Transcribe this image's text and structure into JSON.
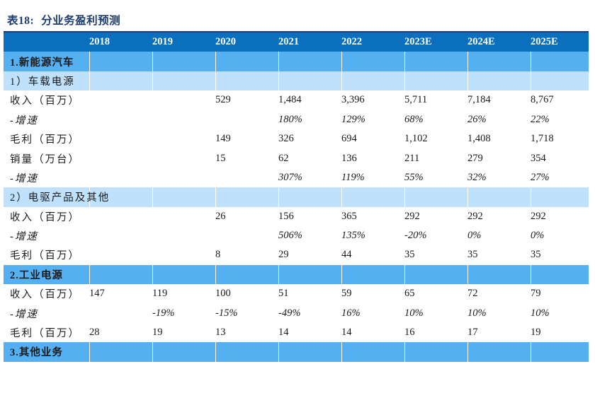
{
  "title": {
    "number": "表18:",
    "text": "分业务盈利预测"
  },
  "columns": [
    "2018",
    "2019",
    "2020",
    "2021",
    "2022",
    "2023E",
    "2024E",
    "2025E"
  ],
  "rows": [
    {
      "type": "section",
      "label": "1.新能源汽车",
      "values": [
        "",
        "",
        "",
        "",
        "",
        "",
        "",
        ""
      ]
    },
    {
      "type": "subsection",
      "label": "1）车载电源",
      "values": [
        "",
        "",
        "",
        "",
        "",
        "",
        "",
        ""
      ]
    },
    {
      "type": "data",
      "label": "收入（百万）",
      "values": [
        "",
        "",
        "529",
        "1,484",
        "3,396",
        "5,711",
        "7,184",
        "8,767"
      ]
    },
    {
      "type": "growth",
      "label": "-增速",
      "values": [
        "",
        "",
        "",
        "180%",
        "129%",
        "68%",
        "26%",
        "22%"
      ]
    },
    {
      "type": "data",
      "label": "毛利（百万）",
      "values": [
        "",
        "",
        "149",
        "326",
        "694",
        "1,102",
        "1,408",
        "1,718"
      ]
    },
    {
      "type": "data",
      "label": "销量（万台）",
      "values": [
        "",
        "",
        "15",
        "62",
        "136",
        "211",
        "279",
        "354"
      ]
    },
    {
      "type": "growth",
      "label": "-增速",
      "values": [
        "",
        "",
        "",
        "307%",
        "119%",
        "55%",
        "32%",
        "27%"
      ]
    },
    {
      "type": "subsection",
      "label": "2）电驱产品及其他",
      "values": [
        "",
        "",
        "",
        "",
        "",
        "",
        "",
        ""
      ]
    },
    {
      "type": "data",
      "label": "收入（百万）",
      "values": [
        "",
        "",
        "26",
        "156",
        "365",
        "292",
        "292",
        "292"
      ]
    },
    {
      "type": "growth",
      "label": "-增速",
      "values": [
        "",
        "",
        "",
        "506%",
        "135%",
        "-20%",
        "0%",
        "0%"
      ]
    },
    {
      "type": "data",
      "label": "毛利（百万）",
      "values": [
        "",
        "",
        "8",
        "29",
        "44",
        "35",
        "35",
        "35"
      ]
    },
    {
      "type": "section",
      "label": "2.工业电源",
      "values": [
        "",
        "",
        "",
        "",
        "",
        "",
        "",
        ""
      ]
    },
    {
      "type": "data",
      "label": "收入（百万）",
      "values": [
        "147",
        "119",
        "100",
        "51",
        "59",
        "65",
        "72",
        "79"
      ]
    },
    {
      "type": "growth",
      "label": "-增速",
      "values": [
        "",
        "-19%",
        "-15%",
        "-49%",
        "16%",
        "10%",
        "10%",
        "10%"
      ]
    },
    {
      "type": "data",
      "label": "毛利（百万）",
      "values": [
        "28",
        "19",
        "13",
        "14",
        "14",
        "16",
        "17",
        "19"
      ]
    },
    {
      "type": "section",
      "label": "3.其他业务",
      "values": [
        "",
        "",
        "",
        "",
        "",
        "",
        "",
        ""
      ]
    }
  ],
  "colors": {
    "header_bg": "#0a6fbd",
    "section_bg": "#55b0f2",
    "subsection_bg": "#bfe1fb",
    "title": "#1f3d70"
  }
}
